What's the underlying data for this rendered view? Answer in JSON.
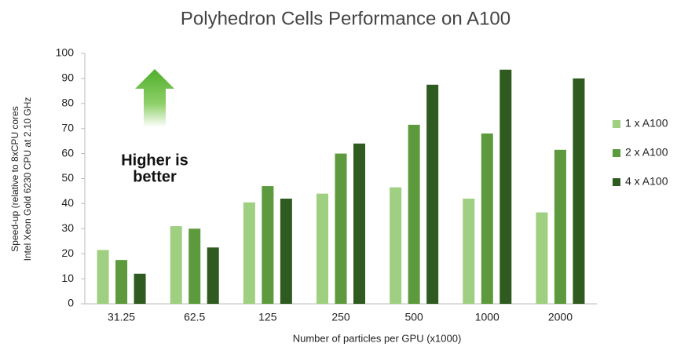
{
  "chart_data": {
    "type": "bar",
    "title": "Polyhedron Cells Performance on A100",
    "xlabel": "Number of particles per GPU (x1000)",
    "ylabel": [
      "Speed-up (relative to 8xCPU cores",
      "Intel Xeon Gold 6230 CPU at 2.10 GHz"
    ],
    "annotation": [
      "Higher is",
      "better"
    ],
    "categories": [
      "31.25",
      "62.5",
      "125",
      "250",
      "500",
      "1000",
      "2000"
    ],
    "series": [
      {
        "name": "1 x A100",
        "color": "#9fcf80",
        "values": [
          21.5,
          31,
          40.5,
          44,
          46.5,
          42,
          36.5
        ]
      },
      {
        "name": "2 x A100",
        "color": "#5c9a3d",
        "values": [
          17.5,
          30,
          47,
          60,
          71.5,
          68,
          61.5
        ]
      },
      {
        "name": "4 x A100",
        "color": "#2f5b20",
        "values": [
          12,
          22.5,
          42,
          64,
          87.5,
          93.5,
          90
        ]
      }
    ],
    "ylim": [
      0,
      100
    ],
    "yticks": [
      0,
      10,
      20,
      30,
      40,
      50,
      60,
      70,
      80,
      90,
      100
    ],
    "grid": false,
    "legend": "right"
  }
}
